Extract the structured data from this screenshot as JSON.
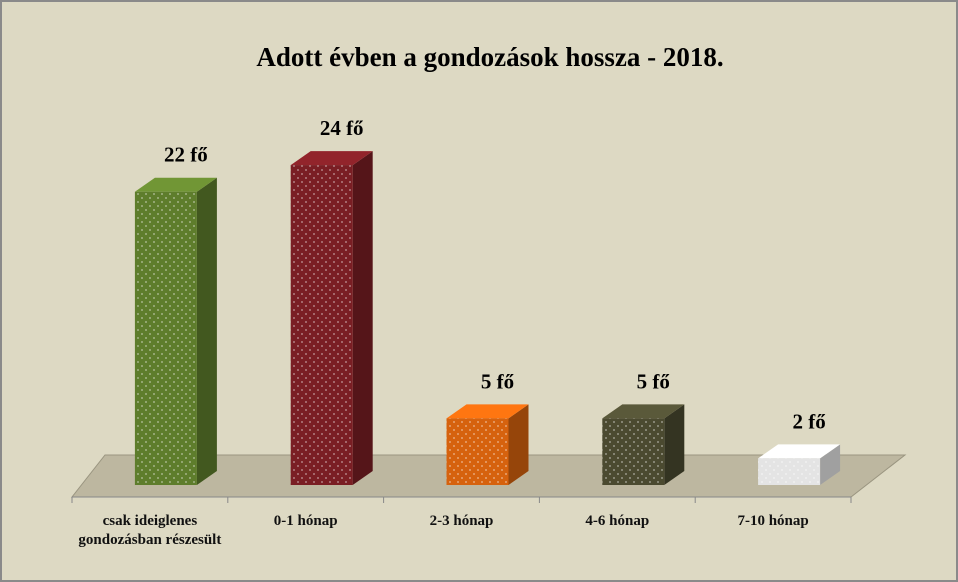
{
  "chart_data": {
    "type": "bar3d",
    "title": "Adott évben a gondozások hossza - 2018.",
    "categories": [
      "csak ideiglenes gondozásban részesült",
      "0-1 hónap",
      "2-3 hónap",
      "4-6 hónap",
      "7-10 hónap"
    ],
    "values": [
      22,
      24,
      5,
      5,
      2
    ],
    "value_labels": [
      "22 fő",
      "24 fő",
      "5 fő",
      "5 fő",
      "2 fő"
    ],
    "colors": [
      "#5e7d2c",
      "#7a1e24",
      "#d6620e",
      "#4b4a30",
      "#e4e4e4"
    ]
  }
}
